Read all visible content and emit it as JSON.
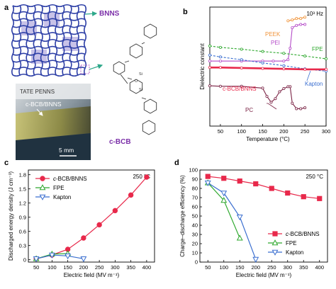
{
  "chart_data": [
    {
      "panel": "a",
      "type": "other",
      "labels": {
        "bnns": "BNNS",
        "film": "c-BCB/BNNS",
        "scale": "5 mm",
        "cbcb": "c-BCB",
        "photo_text": "TATE   PENNS"
      },
      "colors": {
        "mesh": "#2d3fa6",
        "hex": "#9b8fd6",
        "label": "#7b2fa8"
      }
    },
    {
      "panel": "b",
      "type": "line",
      "title": "",
      "annotation": "10³ Hz",
      "xlabel": "Temperature (°C)",
      "ylabel": "Dielectric constant",
      "xlim": [
        25,
        300
      ],
      "ylim": [
        1.8,
        4.4
      ],
      "xticks": [
        50,
        100,
        150,
        200,
        250,
        300
      ],
      "xtick_labels": [
        "50",
        "100",
        "150",
        "200",
        "250",
        "300"
      ],
      "series": [
        {
          "name": "PEEK",
          "color": "#f0943a",
          "x": [
            210,
            220,
            230,
            240,
            250
          ],
          "y": [
            4.1,
            4.12,
            4.15,
            4.15,
            4.18
          ]
        },
        {
          "name": "PEI",
          "color": "#b44bc8",
          "x": [
            25,
            50,
            100,
            150,
            175,
            200,
            210,
            215,
            220,
            230,
            240,
            250
          ],
          "y": [
            3.22,
            3.22,
            3.22,
            3.22,
            3.22,
            3.22,
            3.25,
            3.5,
            3.95,
            4.0,
            4.02,
            4.02
          ]
        },
        {
          "name": "FPE",
          "color": "#2ea82e",
          "x": [
            25,
            50,
            100,
            150,
            200,
            250,
            300
          ],
          "y": [
            3.55,
            3.52,
            3.48,
            3.43,
            3.39,
            3.33,
            3.27
          ]
        },
        {
          "name": "Kapton",
          "color": "#3b6fd0",
          "x": [
            25,
            50,
            100,
            150,
            200,
            250,
            300
          ],
          "y": [
            3.35,
            3.31,
            3.25,
            3.18,
            3.12,
            3.05,
            3.0
          ]
        },
        {
          "name": "c-BCB/BNNS",
          "color": "#e8294b",
          "x": [
            25,
            50,
            100,
            150,
            200,
            250,
            300
          ],
          "y": [
            3.08,
            3.08,
            3.07,
            3.06,
            3.05,
            3.04,
            3.04
          ]
        },
        {
          "name": "PC",
          "color": "#7a2244",
          "x": [
            25,
            50,
            100,
            150,
            160,
            170,
            180,
            190,
            200,
            210,
            215,
            220,
            230,
            240,
            250
          ],
          "y": [
            2.68,
            2.67,
            2.67,
            2.63,
            2.45,
            2.32,
            2.4,
            2.55,
            2.62,
            2.66,
            2.66,
            2.3,
            2.18,
            2.18,
            2.2
          ]
        }
      ],
      "labels": [
        "PEEK",
        "PEI",
        "FPE",
        "Kapton",
        "c-BCB/BNNS",
        "PC"
      ]
    },
    {
      "panel": "c",
      "type": "line",
      "title": "",
      "annotation": "250 °C",
      "xlabel": "Electric field (MV m⁻¹)",
      "ylabel": "Discharged energy density (J cm⁻³)",
      "xlim": [
        25,
        425
      ],
      "ylim": [
        -0.05,
        1.9
      ],
      "xticks": [
        50,
        100,
        150,
        200,
        250,
        300,
        350,
        400
      ],
      "yticks": [
        0,
        0.3,
        0.6,
        0.9,
        1.2,
        1.5,
        1.8
      ],
      "ytick_labels": [
        "0",
        "0.3",
        "0.6",
        "0.9",
        "1.2",
        "1.5",
        "1.8"
      ],
      "legend_position": "top-left",
      "series": [
        {
          "name": "c-BCB/BNNS",
          "marker": "circle-filled",
          "color": "#e8294b",
          "x": [
            50,
            100,
            150,
            200,
            250,
            300,
            350,
            400
          ],
          "y": [
            0.02,
            0.1,
            0.22,
            0.46,
            0.74,
            1.04,
            1.37,
            1.75
          ]
        },
        {
          "name": "FPE",
          "marker": "triangle-up-open",
          "color": "#2ea82e",
          "x": [
            50,
            100,
            150
          ],
          "y": [
            0.02,
            0.12,
            0.13
          ]
        },
        {
          "name": "Kapton",
          "marker": "triangle-down-open",
          "color": "#3b6fd0",
          "x": [
            50,
            100,
            150,
            200
          ],
          "y": [
            0.02,
            0.1,
            0.08,
            0.02
          ]
        }
      ]
    },
    {
      "panel": "d",
      "type": "line",
      "title": "",
      "annotation": "250 °C",
      "xlabel": "Electric field (MV m⁻¹)",
      "ylabel": "Charge–discharge efficiency (%)",
      "xlim": [
        25,
        425
      ],
      "ylim": [
        0,
        100
      ],
      "xticks": [
        50,
        100,
        150,
        200,
        250,
        300,
        350,
        400
      ],
      "yticks": [
        0,
        10,
        20,
        30,
        40,
        50,
        60,
        70,
        80,
        90,
        100
      ],
      "legend_position": "bottom-right",
      "series": [
        {
          "name": "c-BCB/BNNS",
          "marker": "square-filled",
          "color": "#e8294b",
          "x": [
            50,
            100,
            150,
            200,
            250,
            300,
            350,
            400
          ],
          "y": [
            93,
            91,
            88,
            85,
            80,
            75,
            71,
            69
          ]
        },
        {
          "name": "FPE",
          "marker": "triangle-up-open",
          "color": "#2ea82e",
          "x": [
            50,
            100,
            150
          ],
          "y": [
            86,
            67,
            26
          ]
        },
        {
          "name": "Kapton",
          "marker": "triangle-down-open",
          "color": "#3b6fd0",
          "x": [
            50,
            100,
            150,
            200
          ],
          "y": [
            86,
            75,
            49,
            3
          ]
        }
      ]
    }
  ]
}
